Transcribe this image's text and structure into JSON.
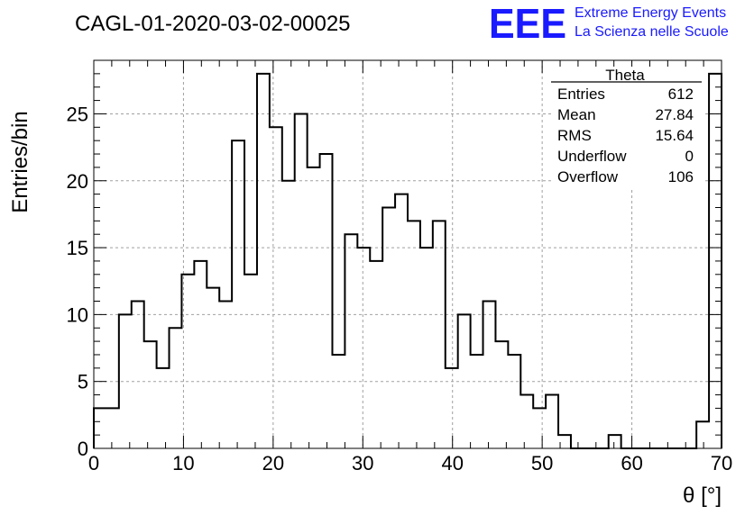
{
  "chart_data": {
    "type": "histogram",
    "title": "CAGL-01-2020-03-02-00025",
    "xlabel": "θ [°]",
    "ylabel": "Entries/bin",
    "xlim": [
      0,
      70
    ],
    "ylim": [
      0,
      29
    ],
    "bin_width": 1.4,
    "x_ticks": [
      0,
      10,
      20,
      30,
      40,
      50,
      60,
      70
    ],
    "y_ticks": [
      0,
      5,
      10,
      15,
      20,
      25
    ],
    "grid": true,
    "color": "#000000",
    "values": [
      3,
      3,
      10,
      11,
      8,
      6,
      9,
      13,
      14,
      12,
      11,
      23,
      13,
      28,
      24,
      20,
      25,
      21,
      22,
      7,
      16,
      15,
      14,
      18,
      19,
      17,
      15,
      17,
      6,
      10,
      7,
      11,
      8,
      7,
      4,
      3,
      4,
      1,
      0,
      0,
      0,
      1,
      0,
      0,
      0,
      0,
      0,
      0,
      2,
      28
    ]
  },
  "stats_box": {
    "title": "Theta",
    "rows": [
      {
        "label": "Entries",
        "value": "612"
      },
      {
        "label": "Mean",
        "value": "27.84"
      },
      {
        "label": "RMS",
        "value": "15.64"
      },
      {
        "label": "Underflow",
        "value": "0"
      },
      {
        "label": "Overflow",
        "value": "106"
      }
    ]
  },
  "logo": {
    "mark": "EEE",
    "line1": "Extreme Energy Events",
    "line2": "La Scienza nelle Scuole",
    "color": "#1a1aff"
  }
}
